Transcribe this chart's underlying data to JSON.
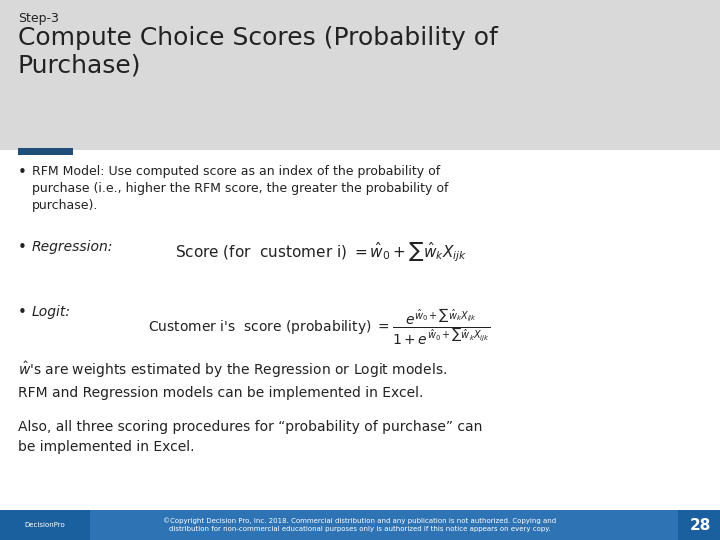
{
  "title_step": "Step-3",
  "title_main": "Compute Choice Scores (Probability of\nPurchase)",
  "header_bg": "#d9d9d9",
  "header_accent": "#1f4e79",
  "body_bg": "#ffffff",
  "footer_bg": "#2e74b5",
  "footer_text": "©Copyright Decision Pro, Inc. 2018. Commercial distribution and any publication is not authorized. Copying and\ndistribution for non-commercial educational purposes only is authorized if this notice appears on every copy.",
  "footer_page": "28",
  "accent_bar_color": "#1f4e79",
  "bullet1_text": "RFM Model: Use computed score as an index of the probability of\npurchase (i.e., higher the RFM score, the greater the probability of\npurchase).",
  "bullet2_label": "Regression:",
  "bullet3_label": "Logit:",
  "note_text": "$\\hat{w}$'s are weights estimated by the Regression or Logit models.\nRFM and Regression models can be implemented in Excel.",
  "also_text": "Also, all three scoring procedures for “probability of purchase” can\nbe implemented in Excel."
}
